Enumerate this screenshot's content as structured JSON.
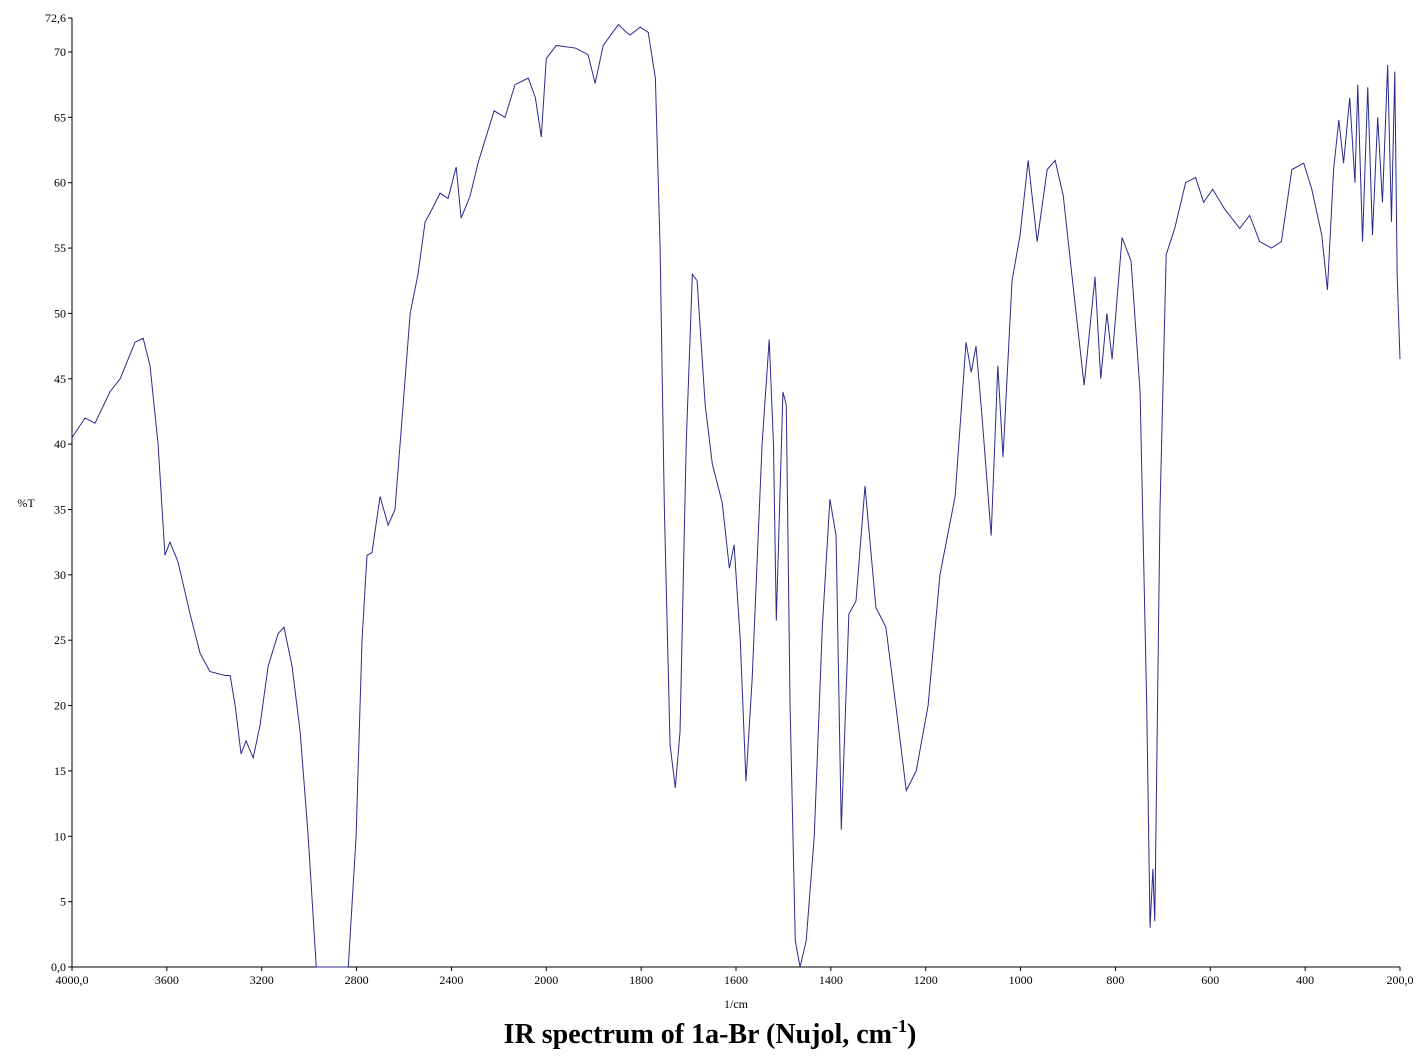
{
  "chart_data": {
    "type": "line",
    "title": "IR spectrum of 1a-Br (Nujol, cm",
    "title_superscript": "-1",
    "title_end": ")",
    "x_label": "1/cm",
    "y_label": "%T",
    "x_scale": "piecewise-by-ticks",
    "xlim": [
      4000,
      200
    ],
    "xticks": [
      {
        "value": 4000,
        "label": "4000,0"
      },
      3600,
      3200,
      2800,
      2400,
      2000,
      1800,
      1600,
      1400,
      1200,
      1000,
      800,
      600,
      400,
      {
        "value": 200,
        "label": "200,0"
      }
    ],
    "ylim": [
      0,
      72.6
    ],
    "yticks": [
      {
        "value": 0,
        "label": "0,0"
      },
      5,
      10,
      15,
      20,
      25,
      30,
      35,
      40,
      45,
      50,
      55,
      60,
      65,
      70,
      {
        "value": 72.6,
        "label": "72,6"
      }
    ],
    "grid": false,
    "series": [
      {
        "name": "1a-Br",
        "color": "#2b2b8f",
        "x": [
          4000,
          3945,
          3903,
          3840,
          3797,
          3734,
          3700,
          3671,
          3637,
          3608,
          3587,
          3553,
          3502,
          3460,
          3418,
          3354,
          3333,
          3312,
          3287,
          3266,
          3236,
          3207,
          3173,
          3131,
          3106,
          3072,
          3038,
          3004,
          2970,
          2835,
          2802,
          2777,
          2756,
          2735,
          2701,
          2667,
          2638,
          2608,
          2574,
          2541,
          2511,
          2481,
          2448,
          2414,
          2380,
          2359,
          2321,
          2288,
          2254,
          2220,
          2174,
          2132,
          2076,
          2046,
          2021,
          2000,
          1979,
          1939,
          1912,
          1897,
          1880,
          1848,
          1831,
          1823,
          1802,
          1785,
          1770,
          1760,
          1751,
          1739,
          1728,
          1718,
          1705,
          1692,
          1682,
          1665,
          1650,
          1629,
          1614,
          1604,
          1591,
          1579,
          1566,
          1545,
          1530,
          1521,
          1515,
          1501,
          1494,
          1486,
          1475,
          1465,
          1452,
          1435,
          1418,
          1402,
          1389,
          1378,
          1362,
          1347,
          1328,
          1305,
          1284,
          1263,
          1241,
          1220,
          1195,
          1170,
          1138,
          1115,
          1104,
          1094,
          1081,
          1062,
          1048,
          1037,
          1018,
          1001,
          984,
          965,
          944,
          927,
          910,
          892,
          866,
          843,
          831,
          818,
          807,
          786,
          767,
          748,
          734,
          727,
          721,
          717,
          706,
          693,
          675,
          652,
          631,
          614,
          595,
          570,
          538,
          517,
          496,
          471,
          450,
          428,
          403,
          386,
          365,
          353,
          340,
          329,
          319,
          306,
          295,
          289,
          279,
          268,
          258,
          247,
          237,
          226,
          218,
          211,
          206,
          200
        ],
        "values": [
          40.5,
          42,
          41.6,
          44,
          45,
          47.8,
          48.1,
          46,
          40,
          31.5,
          32.5,
          31,
          27,
          24,
          22.6,
          22.3,
          22.3,
          20,
          16.3,
          17.3,
          16,
          18.5,
          23,
          25.5,
          26,
          23,
          18,
          10,
          0,
          0,
          10,
          25,
          31.5,
          31.7,
          36,
          33.8,
          35,
          42,
          50,
          53,
          57,
          58,
          59.2,
          58.8,
          61.2,
          57.3,
          59,
          61.5,
          63.5,
          65.5,
          65,
          67.5,
          68,
          66.5,
          63.5,
          69.5,
          70.5,
          70.3,
          69.8,
          67.6,
          70.5,
          72.1,
          71.5,
          71.3,
          71.9,
          71.5,
          68,
          55,
          35,
          17,
          13.7,
          18,
          40,
          53,
          52.5,
          43,
          38.5,
          35.5,
          30.5,
          32.3,
          25,
          14.2,
          22,
          40,
          48,
          40,
          26.5,
          44,
          43,
          20,
          2,
          0,
          2,
          10,
          26,
          35.8,
          33,
          10.5,
          27,
          28,
          36.8,
          27.5,
          26,
          20,
          13.5,
          15,
          20,
          30,
          36,
          47.8,
          45.5,
          47.5,
          42,
          33,
          46,
          39,
          52.5,
          56,
          61.7,
          55.5,
          61,
          61.7,
          59,
          53,
          44.5,
          52.8,
          45,
          50,
          46.5,
          55.8,
          54,
          44,
          20,
          3,
          7.5,
          3.5,
          35,
          54.5,
          56.5,
          60,
          60.4,
          58.5,
          59.5,
          58,
          56.5,
          57.5,
          55.5,
          55,
          55.5,
          61,
          61.5,
          59.5,
          56,
          51.8,
          61,
          64.8,
          61.5,
          66.5,
          60,
          67.5,
          55.5,
          67.3,
          56,
          65,
          58.5,
          69,
          57,
          68.5,
          53,
          46.5
        ]
      }
    ]
  }
}
